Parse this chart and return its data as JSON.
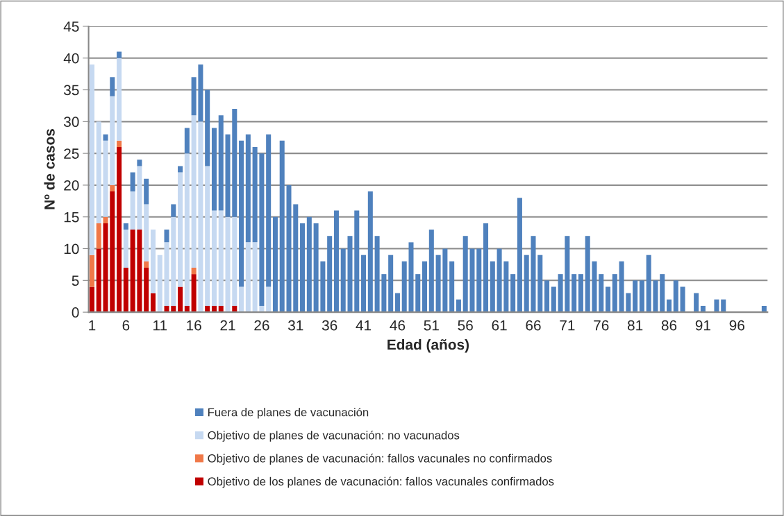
{
  "chart_data": {
    "type": "bar",
    "stacked": true,
    "xlabel": "Edad (años)",
    "ylabel": "Nº de casos",
    "categories": [
      "1",
      null,
      null,
      null,
      null,
      "6",
      null,
      null,
      null,
      null,
      "11",
      null,
      null,
      null,
      null,
      "16",
      null,
      null,
      null,
      null,
      "21",
      null,
      null,
      null,
      null,
      "26",
      null,
      null,
      null,
      null,
      "31",
      null,
      null,
      null,
      null,
      "36",
      null,
      null,
      null,
      null,
      "41",
      null,
      null,
      null,
      null,
      "46",
      null,
      null,
      null,
      null,
      "51",
      null,
      null,
      null,
      null,
      "56",
      null,
      null,
      null,
      null,
      "61",
      null,
      null,
      null,
      null,
      "66",
      null,
      null,
      null,
      null,
      "71",
      null,
      null,
      null,
      null,
      "76",
      null,
      null,
      null,
      null,
      "81",
      null,
      null,
      null,
      null,
      "86",
      null,
      null,
      null,
      null,
      "91",
      null,
      null,
      null,
      null,
      "96",
      null,
      null,
      null,
      null
    ],
    "series": [
      {
        "name": "Objetivo de los planes de vacunación: fallos vacunales confirmados",
        "color": "#c00000",
        "values": [
          4,
          10,
          14,
          19,
          26,
          7,
          13,
          13,
          7,
          3,
          0,
          1,
          1,
          4,
          1,
          6,
          0,
          1,
          1,
          1,
          0,
          1,
          0,
          0,
          0,
          0,
          0,
          0,
          0,
          0,
          0,
          0,
          0,
          0,
          0,
          0,
          0,
          0,
          0,
          0,
          0,
          0,
          0,
          0,
          0,
          0,
          0,
          0,
          0,
          0,
          0,
          0,
          0,
          0,
          0,
          0,
          0,
          0,
          0,
          0,
          0,
          0,
          0,
          0,
          0,
          0,
          0,
          0,
          0,
          0,
          0,
          0,
          0,
          0,
          0,
          0,
          0,
          0,
          0,
          0,
          0,
          0,
          0,
          0,
          0,
          0,
          0,
          0,
          0,
          0,
          0,
          0,
          0,
          0,
          0,
          0,
          0,
          0,
          0,
          0
        ]
      },
      {
        "name": "Objetivo de planes de vacunación: fallos vacunales no confirmados",
        "color": "#f07848",
        "values": [
          5,
          4,
          1,
          1,
          1,
          0,
          0,
          0,
          1,
          0,
          0,
          0,
          0,
          0,
          0,
          1,
          0,
          0,
          0,
          0,
          0,
          0,
          0,
          0,
          0,
          0,
          0,
          0,
          0,
          0,
          0,
          0,
          0,
          0,
          0,
          0,
          0,
          0,
          0,
          0,
          0,
          0,
          0,
          0,
          0,
          0,
          0,
          0,
          0,
          0,
          0,
          0,
          0,
          0,
          0,
          0,
          0,
          0,
          0,
          0,
          0,
          0,
          0,
          0,
          0,
          0,
          0,
          0,
          0,
          0,
          0,
          0,
          0,
          0,
          0,
          0,
          0,
          0,
          0,
          0,
          0,
          0,
          0,
          0,
          0,
          0,
          0,
          0,
          0,
          0,
          0,
          0,
          0,
          0,
          0,
          0,
          0,
          0,
          0,
          0
        ]
      },
      {
        "name": "Objetivo de planes de vacunación: no vacunados",
        "color": "#c6d9f1",
        "values": [
          30,
          16,
          12,
          14,
          13,
          6,
          6,
          10,
          9,
          10,
          9,
          10,
          14,
          18,
          24,
          24,
          30,
          22,
          15,
          15,
          15,
          14,
          4,
          11,
          11,
          1,
          4,
          0,
          0,
          0,
          0,
          0,
          0,
          0,
          0,
          0,
          0,
          0,
          0,
          0,
          0,
          0,
          0,
          0,
          0,
          0,
          0,
          0,
          0,
          0,
          0,
          0,
          0,
          0,
          0,
          0,
          0,
          0,
          0,
          0,
          0,
          0,
          0,
          0,
          0,
          0,
          0,
          0,
          0,
          0,
          0,
          0,
          0,
          0,
          0,
          0,
          0,
          0,
          0,
          0,
          0,
          0,
          0,
          0,
          0,
          0,
          0,
          0,
          0,
          0,
          0,
          0,
          0,
          0,
          0,
          0,
          0,
          0,
          0,
          0
        ]
      },
      {
        "name": "Fuera de planes de vacunación",
        "color": "#4f81bd",
        "values": [
          0,
          0,
          1,
          3,
          1,
          1,
          3,
          1,
          4,
          0,
          0,
          2,
          2,
          1,
          4,
          6,
          9,
          12,
          13,
          15,
          13,
          17,
          23,
          17,
          15,
          24,
          24,
          15,
          27,
          20,
          17,
          14,
          15,
          14,
          8,
          12,
          16,
          10,
          12,
          16,
          9,
          19,
          12,
          6,
          9,
          3,
          8,
          11,
          6,
          8,
          13,
          9,
          10,
          8,
          2,
          12,
          10,
          10,
          14,
          8,
          10,
          8,
          6,
          18,
          9,
          12,
          9,
          5,
          4,
          6,
          12,
          6,
          6,
          12,
          8,
          6,
          4,
          6,
          8,
          3,
          5,
          5,
          9,
          5,
          6,
          2,
          5,
          4,
          0,
          3,
          1,
          0,
          2,
          2,
          0,
          0,
          0,
          0,
          0,
          1
        ]
      }
    ],
    "ylim": [
      0,
      45
    ],
    "yticks": [
      0,
      5,
      10,
      15,
      20,
      25,
      30,
      35,
      40,
      45
    ],
    "grid": "y",
    "legend": "bottom"
  }
}
